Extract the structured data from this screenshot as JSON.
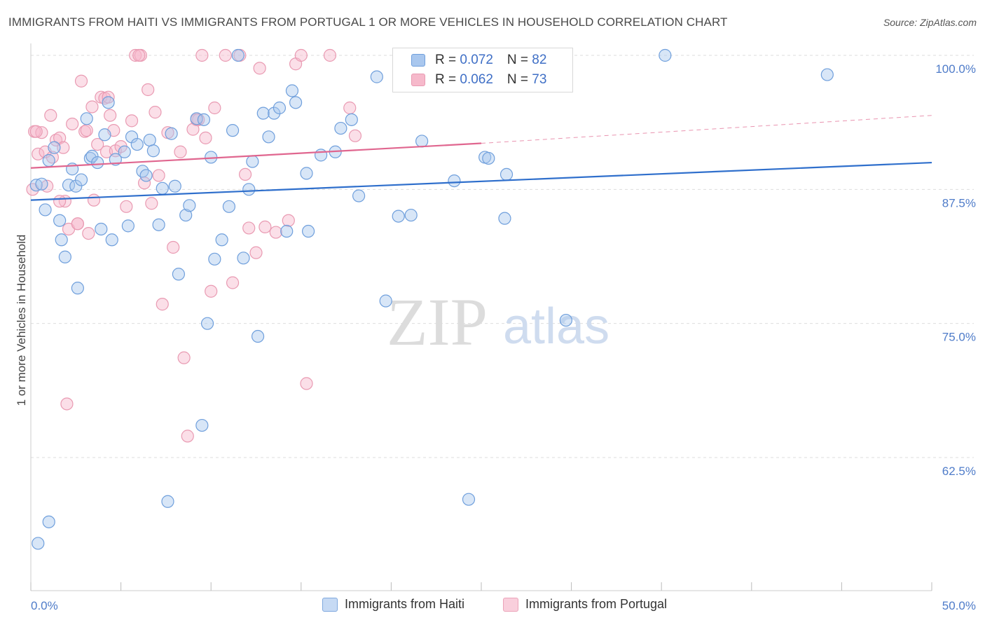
{
  "title": "IMMIGRANTS FROM HAITI VS IMMIGRANTS FROM PORTUGAL 1 OR MORE VEHICLES IN HOUSEHOLD CORRELATION CHART",
  "source": "Source: ZipAtlas.com",
  "watermark": {
    "zip": "ZIP",
    "atlas": "atlas"
  },
  "legend": {
    "rows": [
      {
        "r_label": "R = ",
        "r_value": "0.072",
        "n_label": "N = ",
        "n_value": "82"
      },
      {
        "r_label": "R = ",
        "r_value": "0.062",
        "n_label": "N = ",
        "n_value": "73"
      }
    ]
  },
  "bottom_legend": {
    "haiti": "Immigrants from Haiti",
    "portugal": "Immigrants from Portugal"
  },
  "colors": {
    "haiti_fill": "#a9c7ee",
    "haiti_stroke": "#6f9fdc",
    "haiti_line": "#2f6fcc",
    "portugal_fill": "#f6b9cb",
    "portugal_stroke": "#e99ab2",
    "portugal_line": "#e0668f",
    "grid": "#dddddd",
    "tick_label": "#4f7cc9"
  },
  "chart_data": {
    "type": "scatter",
    "title": "IMMIGRANTS FROM HAITI VS IMMIGRANTS FROM PORTUGAL 1 OR MORE VEHICLES IN HOUSEHOLD CORRELATION CHART",
    "xlabel": "",
    "ylabel": "1 or more Vehicles in Household",
    "xlim": [
      0,
      50
    ],
    "ylim": [
      50,
      100.5
    ],
    "x_tick_labels": [
      {
        "value": 0,
        "label": "0.0%"
      },
      {
        "value": 50,
        "label": "50.0%"
      }
    ],
    "y_tick_labels": [
      {
        "value": 100,
        "label": "100.0%"
      },
      {
        "value": 87.5,
        "label": "87.5%"
      },
      {
        "value": 75,
        "label": "75.0%"
      },
      {
        "value": 62.5,
        "label": "62.5%"
      }
    ],
    "series": [
      {
        "name": "Immigrants from Haiti",
        "R": 0.072,
        "N": 82,
        "trend": {
          "x0": 0,
          "y0": 86.5,
          "x1": 50,
          "y1": 90.0
        },
        "points": [
          [
            0.3,
            87.9
          ],
          [
            0.6,
            88.0
          ],
          [
            0.8,
            85.6
          ],
          [
            1.0,
            90.2
          ],
          [
            1.3,
            91.4
          ],
          [
            1.6,
            84.6
          ],
          [
            1.7,
            82.8
          ],
          [
            1.9,
            81.2
          ],
          [
            2.1,
            87.9
          ],
          [
            2.3,
            89.4
          ],
          [
            2.5,
            87.8
          ],
          [
            2.6,
            78.3
          ],
          [
            2.8,
            88.4
          ],
          [
            3.1,
            94.1
          ],
          [
            3.3,
            90.4
          ],
          [
            3.4,
            90.6
          ],
          [
            3.7,
            90.0
          ],
          [
            3.9,
            83.8
          ],
          [
            4.1,
            92.6
          ],
          [
            4.3,
            95.6
          ],
          [
            4.5,
            82.8
          ],
          [
            4.7,
            90.3
          ],
          [
            5.2,
            91.0
          ],
          [
            5.4,
            84.1
          ],
          [
            5.6,
            92.4
          ],
          [
            5.9,
            91.7
          ],
          [
            6.2,
            89.2
          ],
          [
            6.4,
            88.8
          ],
          [
            6.6,
            92.1
          ],
          [
            6.8,
            91.1
          ],
          [
            7.1,
            84.2
          ],
          [
            7.3,
            87.6
          ],
          [
            7.6,
            58.4
          ],
          [
            7.8,
            92.7
          ],
          [
            8.0,
            87.8
          ],
          [
            8.2,
            79.6
          ],
          [
            8.6,
            85.1
          ],
          [
            8.8,
            86.0
          ],
          [
            9.2,
            94.1
          ],
          [
            9.5,
            65.5
          ],
          [
            9.6,
            94.0
          ],
          [
            9.8,
            75.0
          ],
          [
            10.0,
            90.5
          ],
          [
            10.2,
            81.0
          ],
          [
            10.6,
            82.8
          ],
          [
            11.0,
            85.9
          ],
          [
            11.2,
            93.0
          ],
          [
            11.5,
            100.0
          ],
          [
            11.8,
            81.1
          ],
          [
            12.1,
            87.5
          ],
          [
            12.3,
            90.1
          ],
          [
            12.6,
            73.8
          ],
          [
            12.9,
            94.6
          ],
          [
            13.2,
            92.4
          ],
          [
            13.5,
            94.6
          ],
          [
            13.8,
            95.1
          ],
          [
            14.2,
            83.6
          ],
          [
            14.5,
            96.7
          ],
          [
            14.7,
            95.6
          ],
          [
            15.3,
            89.0
          ],
          [
            15.4,
            83.6
          ],
          [
            16.1,
            90.7
          ],
          [
            16.9,
            91.0
          ],
          [
            17.2,
            93.2
          ],
          [
            17.8,
            94.0
          ],
          [
            18.2,
            86.9
          ],
          [
            19.2,
            98.0
          ],
          [
            19.7,
            77.1
          ],
          [
            20.4,
            85.0
          ],
          [
            21.1,
            85.1
          ],
          [
            21.7,
            92.0
          ],
          [
            23.5,
            88.3
          ],
          [
            24.3,
            58.6
          ],
          [
            25.2,
            90.5
          ],
          [
            25.4,
            90.4
          ],
          [
            26.3,
            84.8
          ],
          [
            26.4,
            88.9
          ],
          [
            29.7,
            75.3
          ],
          [
            35.2,
            100.0
          ],
          [
            44.2,
            98.2
          ],
          [
            0.4,
            54.5
          ],
          [
            1.0,
            56.5
          ]
        ]
      },
      {
        "name": "Immigrants from Portugal",
        "R": 0.062,
        "N": 73,
        "trend": {
          "x0": 0,
          "y0": 89.5,
          "x1": 25,
          "y1": 91.8,
          "dash_to": {
            "x1": 50,
            "y1": 94.4
          }
        },
        "points": [
          [
            0.2,
            92.9
          ],
          [
            0.4,
            90.8
          ],
          [
            0.6,
            92.8
          ],
          [
            0.8,
            91.0
          ],
          [
            0.9,
            87.8
          ],
          [
            1.1,
            94.4
          ],
          [
            1.2,
            90.5
          ],
          [
            1.4,
            92.1
          ],
          [
            1.6,
            92.3
          ],
          [
            1.8,
            91.4
          ],
          [
            1.9,
            86.4
          ],
          [
            2.1,
            83.8
          ],
          [
            2.3,
            93.6
          ],
          [
            2.6,
            84.3
          ],
          [
            2.8,
            97.6
          ],
          [
            3.0,
            92.9
          ],
          [
            3.2,
            83.4
          ],
          [
            3.4,
            95.2
          ],
          [
            3.5,
            86.5
          ],
          [
            3.7,
            91.7
          ],
          [
            3.9,
            96.1
          ],
          [
            4.1,
            96.0
          ],
          [
            4.2,
            91.0
          ],
          [
            4.4,
            94.4
          ],
          [
            4.6,
            93.0
          ],
          [
            4.7,
            91.1
          ],
          [
            5.0,
            91.5
          ],
          [
            5.3,
            85.9
          ],
          [
            5.6,
            93.9
          ],
          [
            5.8,
            100.0
          ],
          [
            6.1,
            100.0
          ],
          [
            6.3,
            88.1
          ],
          [
            6.5,
            96.8
          ],
          [
            6.7,
            86.2
          ],
          [
            6.9,
            94.7
          ],
          [
            7.1,
            88.8
          ],
          [
            7.3,
            76.8
          ],
          [
            7.6,
            92.8
          ],
          [
            7.9,
            82.1
          ],
          [
            8.3,
            91.0
          ],
          [
            8.5,
            71.8
          ],
          [
            8.7,
            64.5
          ],
          [
            9.0,
            93.1
          ],
          [
            9.3,
            94.0
          ],
          [
            9.5,
            100.0
          ],
          [
            9.7,
            92.3
          ],
          [
            10.0,
            78.0
          ],
          [
            10.2,
            95.1
          ],
          [
            10.8,
            100.0
          ],
          [
            11.2,
            78.8
          ],
          [
            11.6,
            100.0
          ],
          [
            11.9,
            88.9
          ],
          [
            12.1,
            83.9
          ],
          [
            12.5,
            81.6
          ],
          [
            12.7,
            98.8
          ],
          [
            13.0,
            84.0
          ],
          [
            13.6,
            83.5
          ],
          [
            14.3,
            84.6
          ],
          [
            14.7,
            99.2
          ],
          [
            15.0,
            100.0
          ],
          [
            15.3,
            69.4
          ],
          [
            16.6,
            100.0
          ],
          [
            17.7,
            95.1
          ],
          [
            18.0,
            92.5
          ],
          [
            0.1,
            87.5
          ],
          [
            0.3,
            92.9
          ],
          [
            1.6,
            86.4
          ],
          [
            2.6,
            84.3
          ],
          [
            3.1,
            93.0
          ],
          [
            4.3,
            96.1
          ],
          [
            6.0,
            100.0
          ],
          [
            9.2,
            94.0
          ],
          [
            2.0,
            67.5
          ]
        ]
      }
    ]
  }
}
